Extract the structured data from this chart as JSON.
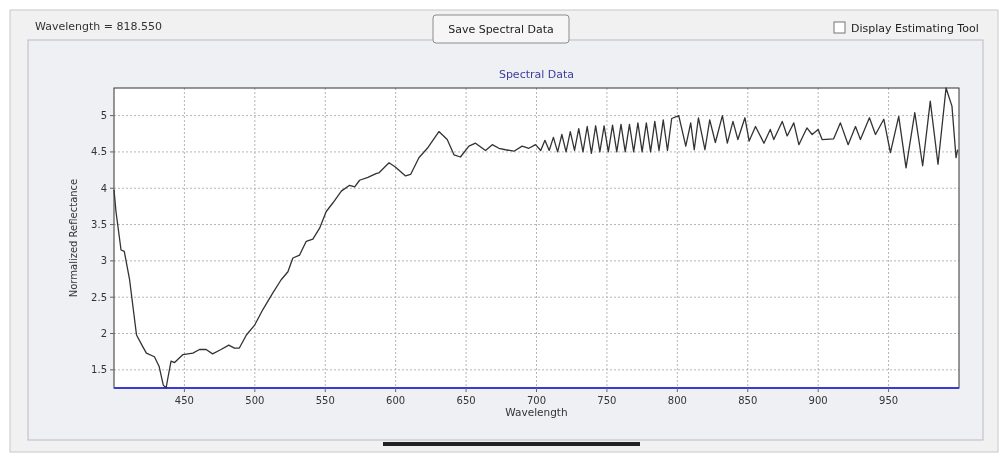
{
  "chart_data": {
    "type": "line",
    "title": "Spectral Data",
    "xlabel": "Wavelength",
    "ylabel": "Normalized Reflectance",
    "annotations": [
      "Wavelength = 818.550",
      "Save Spectral Data",
      "Display Estimating Tool"
    ],
    "xlim": [
      400,
      1000
    ],
    "ylim": [
      1.25,
      5.38
    ],
    "xticks": [
      450,
      500,
      550,
      600,
      650,
      700,
      750,
      800,
      850,
      900,
      950
    ],
    "yticks": [
      1.5,
      2,
      2.5,
      3,
      3.5,
      4,
      4.5,
      5
    ],
    "grid": true,
    "marker": "none",
    "line_style": "solid",
    "series": [
      {
        "color": "#333333",
        "x": [
          400,
          401.4,
          405,
          407.3,
          411,
          416,
          420.4,
          423,
          428.7,
          432,
          435,
          437,
          438,
          440.5,
          443,
          449,
          456,
          460.7,
          465.4,
          470,
          476,
          481.5,
          485.5,
          489,
          494,
          500,
          505.7,
          512.8,
          518.7,
          523.5,
          527,
          531.8,
          536.5,
          541.2,
          546,
          550.7,
          555.5,
          561.4,
          567.3,
          570.9,
          574.4,
          580.3,
          586,
          588,
          595.3,
          600,
          607,
          610.6,
          616.5,
          622.5,
          630.7,
          636.6,
          641.4,
          646,
          652,
          656.7,
          663.8,
          668.6,
          673.3,
          678,
          684,
          689.8,
          694.6,
          699.3,
          703,
          706,
          709,
          712,
          715,
          718,
          721,
          724,
          727,
          730,
          733,
          736,
          739,
          742,
          745,
          748,
          751,
          754,
          757,
          760,
          763,
          766,
          769,
          772,
          775,
          778,
          781,
          784,
          787,
          790,
          793,
          796,
          801,
          806,
          809.5,
          812,
          815,
          819.6,
          823,
          827,
          832,
          835.5,
          839.5,
          843,
          848,
          851,
          855.5,
          861.5,
          866,
          868.5,
          874.5,
          878,
          882.7,
          886.3,
          892,
          895.7,
          900,
          902.8,
          911,
          915.8,
          921.3,
          926.5,
          930,
          936.4,
          940.7,
          946.6,
          951.3,
          957.2,
          962.4,
          968.6,
          974.2,
          979.6,
          985.1,
          990.8,
          995,
          997.9,
          999
        ],
        "values": [
          3.98,
          3.68,
          3.15,
          3.13,
          2.75,
          1.98,
          1.82,
          1.73,
          1.68,
          1.55,
          1.29,
          1.25,
          1.36,
          1.62,
          1.6,
          1.71,
          1.73,
          1.78,
          1.78,
          1.72,
          1.78,
          1.84,
          1.8,
          1.8,
          1.98,
          2.12,
          2.33,
          2.56,
          2.74,
          2.85,
          3.04,
          3.08,
          3.27,
          3.3,
          3.45,
          3.68,
          3.8,
          3.96,
          4.04,
          4.02,
          4.11,
          4.15,
          4.2,
          4.21,
          4.35,
          4.29,
          4.17,
          4.19,
          4.42,
          4.55,
          4.78,
          4.67,
          4.46,
          4.43,
          4.58,
          4.62,
          4.52,
          4.6,
          4.55,
          4.53,
          4.51,
          4.58,
          4.55,
          4.6,
          4.52,
          4.66,
          4.52,
          4.7,
          4.5,
          4.74,
          4.5,
          4.78,
          4.52,
          4.82,
          4.5,
          4.85,
          4.48,
          4.86,
          4.5,
          4.86,
          4.5,
          4.87,
          4.5,
          4.88,
          4.5,
          4.88,
          4.5,
          4.9,
          4.5,
          4.9,
          4.5,
          4.92,
          4.52,
          4.94,
          4.52,
          4.96,
          5.0,
          4.58,
          4.9,
          4.53,
          4.97,
          4.53,
          4.94,
          4.63,
          5.0,
          4.62,
          4.92,
          4.67,
          4.97,
          4.65,
          4.85,
          4.62,
          4.81,
          4.67,
          4.92,
          4.72,
          4.9,
          4.6,
          4.83,
          4.74,
          4.81,
          4.67,
          4.68,
          4.9,
          4.6,
          4.85,
          4.67,
          4.97,
          4.74,
          4.95,
          4.49,
          4.99,
          4.28,
          5.04,
          4.31,
          5.2,
          4.33,
          5.38,
          5.13,
          4.42,
          4.53
        ]
      }
    ]
  }
}
